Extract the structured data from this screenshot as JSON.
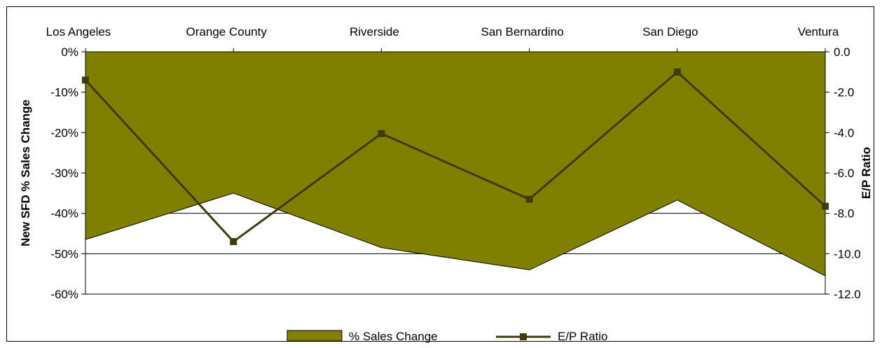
{
  "chart_data": {
    "type": "area",
    "categories": [
      "Los Angeles",
      "Orange County",
      "Riverside",
      "San Bernardino",
      "San Diego",
      "Ventura"
    ],
    "series": [
      {
        "name": "% Sales Change",
        "axis": "left",
        "type": "area",
        "color": "#808000",
        "values": [
          -46.5,
          -35,
          -48.5,
          -54,
          -36.7,
          -55.5
        ]
      },
      {
        "name": "E/P Ratio",
        "axis": "right",
        "type": "line",
        "marker": "square",
        "color": "#3f3a10",
        "values": [
          -1.4,
          -9.4,
          -4.05,
          -7.3,
          -1.0,
          -7.65
        ]
      }
    ],
    "y_left": {
      "label": "New SFD % Sales Change",
      "ticks": [
        "0%",
        "-10%",
        "-20%",
        "-30%",
        "-40%",
        "-50%",
        "-60%"
      ],
      "range": [
        -60,
        0
      ]
    },
    "y_right": {
      "label": "E/P Ratio",
      "ticks": [
        "0.0",
        "-2.0",
        "-4.0",
        "-6.0",
        "-8.0",
        "-10.0",
        "-12.0"
      ],
      "range": [
        -12,
        0
      ]
    },
    "x_axis_position": "top",
    "grid": "horizontal lines visible below area",
    "legend_position": "bottom"
  }
}
